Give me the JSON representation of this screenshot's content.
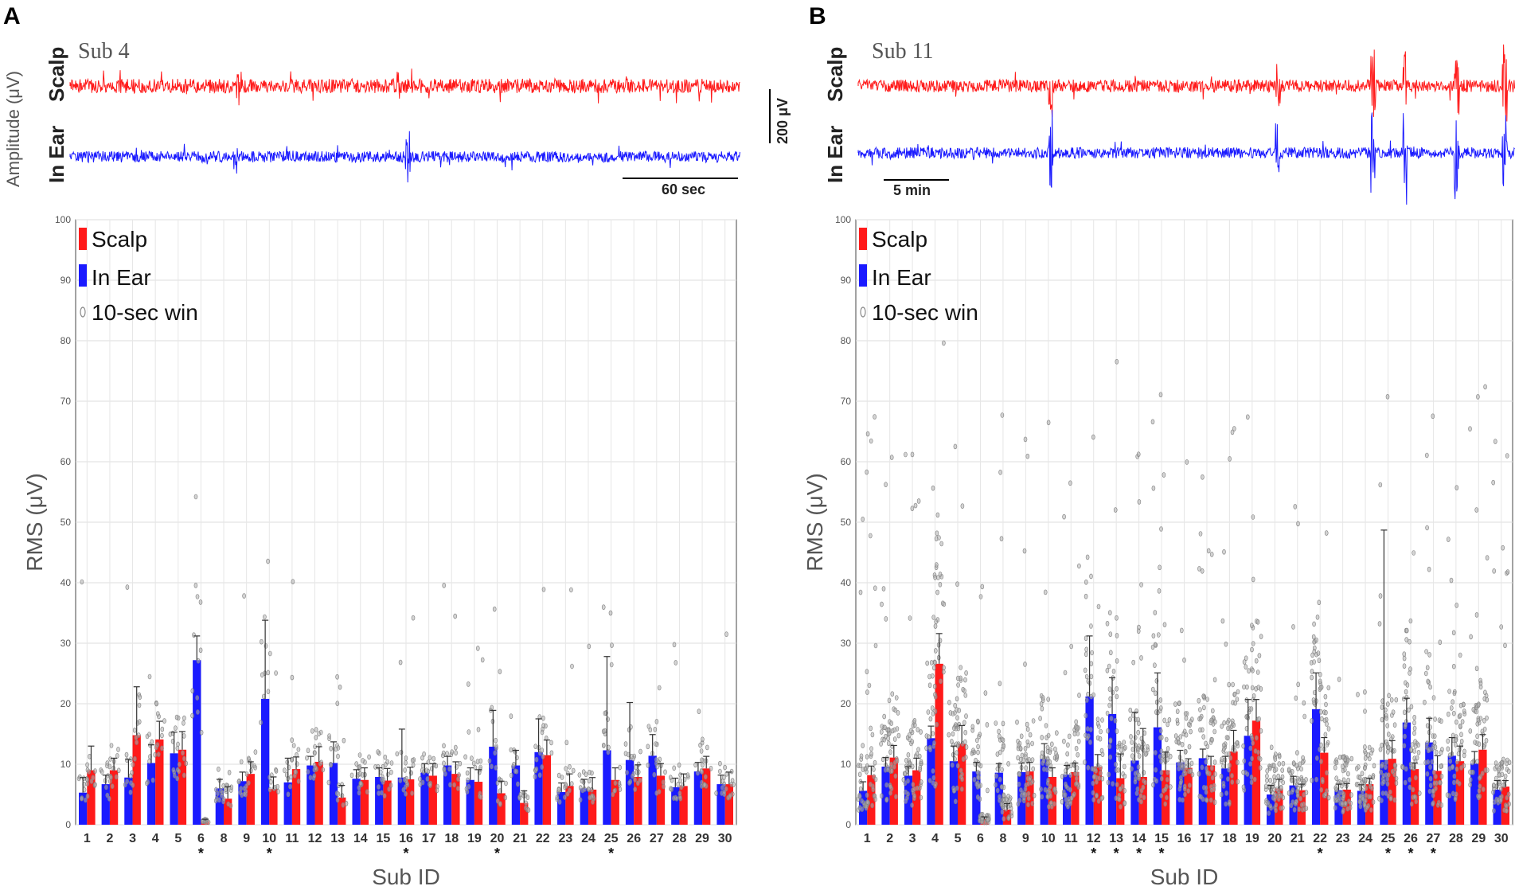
{
  "panels": [
    {
      "letter": "A",
      "trace_subject": "Sub 4",
      "trace_labels": {
        "scalp": "Scalp",
        "inear": "In Ear"
      },
      "amplitude_label": "Amplitude (μV)",
      "time_scale_label": "60 sec",
      "chart_data": {
        "type": "bar",
        "title": "",
        "xlabel": "Sub ID",
        "ylabel": "RMS (μV)",
        "ylim": [
          0,
          100
        ],
        "yticks": [
          0,
          10,
          20,
          30,
          40,
          50,
          60,
          70,
          80,
          90,
          100
        ],
        "grid": true,
        "legend": [
          "Scalp",
          "In Ear",
          "10-sec win"
        ],
        "legend_position": "top-left",
        "categories": [
          "1",
          "2",
          "3",
          "4",
          "5",
          "6",
          "8",
          "9",
          "10",
          "11",
          "12",
          "13",
          "14",
          "15",
          "16",
          "17",
          "18",
          "19",
          "20",
          "21",
          "22",
          "23",
          "24",
          "25",
          "26",
          "27",
          "28",
          "29",
          "30"
        ],
        "significant": [
          "6",
          "10",
          "16",
          "20",
          "25"
        ],
        "series": [
          {
            "name": "In Ear",
            "color": "#1a1aff",
            "values": [
              5.3,
              6.7,
              7.8,
              10.2,
              11.8,
              27.2,
              6.0,
              7.2,
              20.8,
              7.0,
              9.8,
              10.2,
              7.6,
              7.9,
              7.8,
              8.6,
              9.8,
              7.4,
              12.9,
              9.8,
              12.0,
              5.4,
              6.0,
              12.3,
              10.7,
              11.4,
              6.2,
              8.8,
              6.7
            ],
            "errors": [
              2.5,
              1.5,
              3.0,
              3.0,
              3.5,
              4.0,
              1.5,
              1.5,
              13.0,
              4.0,
              1.5,
              3.5,
              1.5,
              1.5,
              8.0,
              1.5,
              1.5,
              2.0,
              6.0,
              2.5,
              5.5,
              1.5,
              1.5,
              15.5,
              9.5,
              3.5,
              1.5,
              1.5,
              1.5
            ]
          },
          {
            "name": "Scalp",
            "color": "#ff1a1a",
            "values": [
              9.0,
              9.0,
              14.8,
              14.1,
              12.4,
              0.6,
              4.3,
              8.4,
              5.9,
              9.2,
              10.4,
              4.5,
              7.4,
              7.3,
              7.5,
              8.1,
              8.4,
              7.1,
              5.2,
              3.6,
              11.5,
              6.4,
              5.8,
              7.4,
              7.9,
              8.1,
              6.4,
              9.3,
              6.7
            ],
            "errors": [
              4.0,
              2.0,
              8.0,
              3.0,
              3.0,
              0.3,
              2.0,
              2.0,
              2.0,
              2.0,
              2.5,
              2.0,
              2.0,
              2.0,
              2.0,
              2.0,
              2.0,
              2.0,
              2.0,
              2.0,
              2.5,
              2.0,
              2.0,
              2.0,
              2.0,
              2.0,
              2.0,
              2.0,
              2.0
            ]
          }
        ]
      }
    },
    {
      "letter": "B",
      "trace_subject": "Sub 11",
      "trace_labels": {
        "scalp": "Scalp",
        "inear": "In Ear"
      },
      "amplitude_scale_label": "200 μV",
      "time_scale_label": "5 min",
      "chart_data": {
        "type": "bar",
        "title": "",
        "xlabel": "Sub ID",
        "ylabel": "RMS (μV)",
        "ylim": [
          0,
          100
        ],
        "yticks": [
          0,
          10,
          20,
          30,
          40,
          50,
          60,
          70,
          80,
          90,
          100
        ],
        "grid": true,
        "legend": [
          "Scalp",
          "In Ear",
          "10-sec win"
        ],
        "legend_position": "top-left",
        "categories": [
          "1",
          "2",
          "3",
          "4",
          "5",
          "6",
          "8",
          "9",
          "10",
          "11",
          "12",
          "13",
          "14",
          "15",
          "16",
          "17",
          "18",
          "19",
          "20",
          "21",
          "22",
          "23",
          "24",
          "25",
          "26",
          "27",
          "28",
          "29",
          "30"
        ],
        "significant": [
          "12",
          "13",
          "14",
          "15",
          "22",
          "25",
          "26",
          "27"
        ],
        "series": [
          {
            "name": "In Ear",
            "color": "#1a1aff",
            "values": [
              5.6,
              9.6,
              8.1,
              14.3,
              10.5,
              8.8,
              8.6,
              8.7,
              10.9,
              8.3,
              21.2,
              18.3,
              10.6,
              16.1,
              10.3,
              11.0,
              9.3,
              14.7,
              5.0,
              6.5,
              19.1,
              5.7,
              5.6,
              10.7,
              16.9,
              13.6,
              11.4,
              10.1,
              5.8
            ],
            "errors": [
              1.5,
              1.5,
              1.5,
              2.0,
              2.5,
              1.5,
              1.5,
              1.5,
              2.5,
              1.5,
              10.0,
              6.0,
              8.0,
              9.0,
              2.0,
              1.5,
              2.0,
              6.0,
              1.5,
              1.5,
              6.0,
              1.0,
              1.0,
              38.0,
              4.0,
              4.0,
              3.0,
              2.0,
              1.5
            ]
          },
          {
            "name": "Scalp",
            "color": "#ff1a1a",
            "values": [
              8.2,
              11.1,
              9.0,
              26.6,
              13.4,
              0.9,
              2.5,
              8.8,
              7.9,
              8.7,
              9.6,
              7.7,
              7.9,
              9.0,
              9.4,
              9.8,
              12.1,
              17.2,
              6.0,
              5.7,
              11.9,
              5.8,
              6.7,
              10.9,
              9.2,
              8.9,
              10.5,
              12.4,
              6.3
            ],
            "errors": [
              1.5,
              2.0,
              2.0,
              5.0,
              3.0,
              0.4,
              1.0,
              1.5,
              1.5,
              1.5,
              2.0,
              4.0,
              8.0,
              3.0,
              1.5,
              1.5,
              3.5,
              3.5,
              1.5,
              1.0,
              2.5,
              1.0,
              1.0,
              3.0,
              1.0,
              2.5,
              2.5,
              2.5,
              1.0
            ]
          }
        ]
      }
    }
  ]
}
